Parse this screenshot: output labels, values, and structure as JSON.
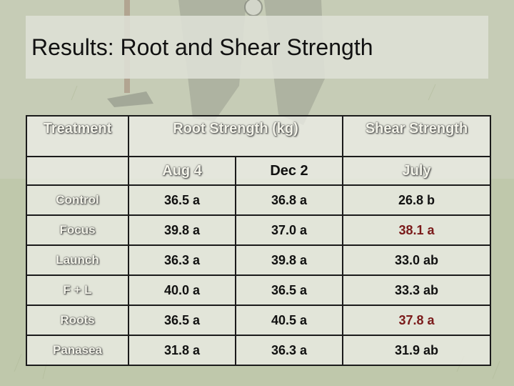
{
  "slide": {
    "title": "Results: Root and Shear Strength"
  },
  "table": {
    "headers": {
      "treatment": "Treatment",
      "root_strength": "Root Strength (kg)",
      "shear_strength": "Shear Strength",
      "aug4": "Aug 4",
      "dec2": "Dec 2",
      "july": "July"
    },
    "rows": [
      {
        "treatment": "Control",
        "aug4": "36.5 a",
        "dec2": "36.8 a",
        "july": "26.8 b"
      },
      {
        "treatment": "Focus",
        "aug4": "39.8 a",
        "dec2": "37.0 a",
        "july": "38.1 a"
      },
      {
        "treatment": "Launch",
        "aug4": "36.3 a",
        "dec2": "39.8 a",
        "july": "33.0 ab"
      },
      {
        "treatment": "F + L",
        "aug4": "40.0 a",
        "dec2": "36.5 a",
        "july": "33.3 ab"
      },
      {
        "treatment": "Roots",
        "aug4": "36.5 a",
        "dec2": "40.5 a",
        "july": "37.8 a"
      },
      {
        "treatment": "Panasea",
        "aug4": "31.8 a",
        "dec2": "36.3 a",
        "july": "31.9 ab"
      }
    ]
  },
  "colors": {
    "highlight_value": "#7a1a1a",
    "header_text": "#f4f4ea",
    "border": "#1b1b1b"
  }
}
